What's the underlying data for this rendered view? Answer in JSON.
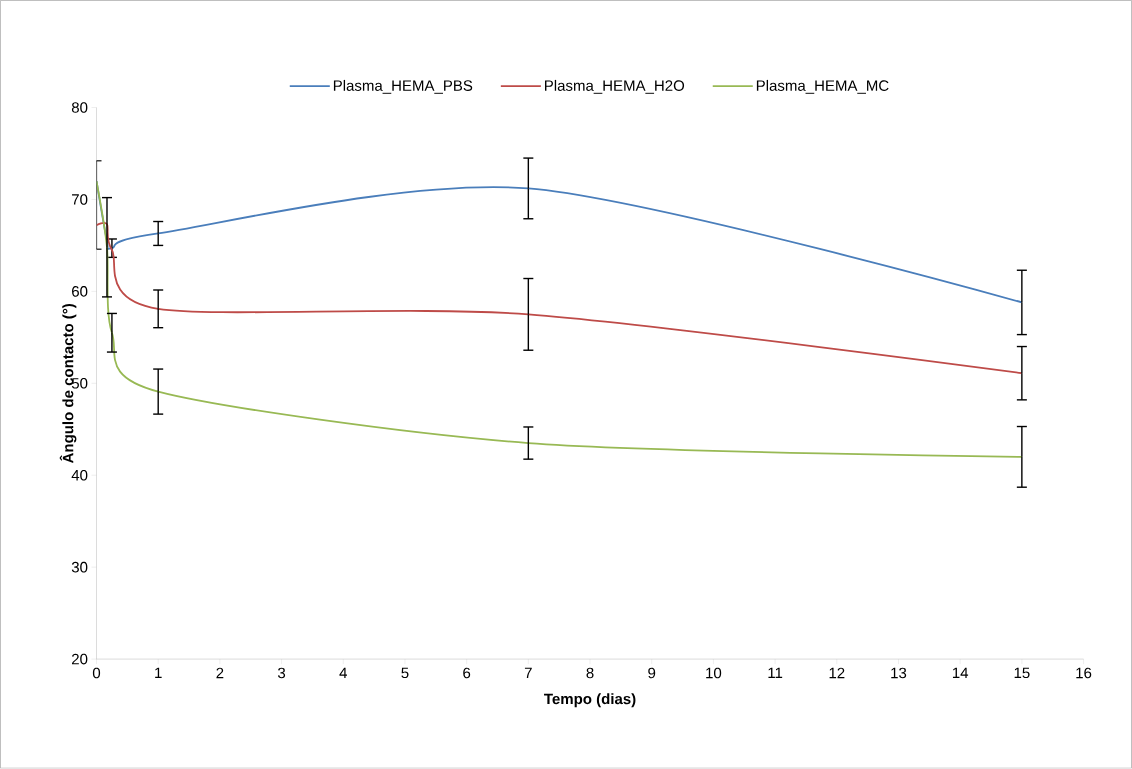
{
  "chart_data": {
    "type": "line",
    "xlabel": "Tempo (dias)",
    "ylabel": "Ângulo de contacto (°)",
    "x": [
      0,
      0.17,
      0.25,
      1,
      7,
      15
    ],
    "series": [
      {
        "name": "Plasma_HEMA_PBS",
        "color": "#4a7ebb",
        "values": [
          72,
          65.5,
          64.7,
          66.3,
          71.2,
          58.8
        ],
        "errors": [
          [
            64.6,
            74.2
          ],
          null,
          1.0,
          1.3,
          3.3,
          3.5
        ]
      },
      {
        "name": "Plasma_HEMA_H2O",
        "color": "#be4b48",
        "values": [
          67.2,
          67.3,
          64.5,
          58.1,
          57.5,
          51.1
        ],
        "errors": [
          null,
          null,
          null,
          2.05,
          3.9,
          2.9
        ]
      },
      {
        "name": "Plasma_HEMA_MC",
        "color": "#98b954",
        "values": [
          72,
          64.8,
          55.5,
          49.1,
          43.5,
          42.0
        ],
        "errors": [
          null,
          5.4,
          2.1,
          2.45,
          1.75,
          3.3
        ]
      }
    ],
    "xlim": [
      0,
      16
    ],
    "xticks": [
      0,
      1,
      2,
      3,
      4,
      5,
      6,
      7,
      8,
      9,
      10,
      11,
      12,
      13,
      14,
      15,
      16
    ],
    "ylim": [
      20,
      80
    ],
    "yticks": [
      20,
      30,
      40,
      50,
      60,
      70,
      80
    ],
    "grid": false,
    "legend": "top",
    "marker": "none",
    "line_style": "solid"
  }
}
